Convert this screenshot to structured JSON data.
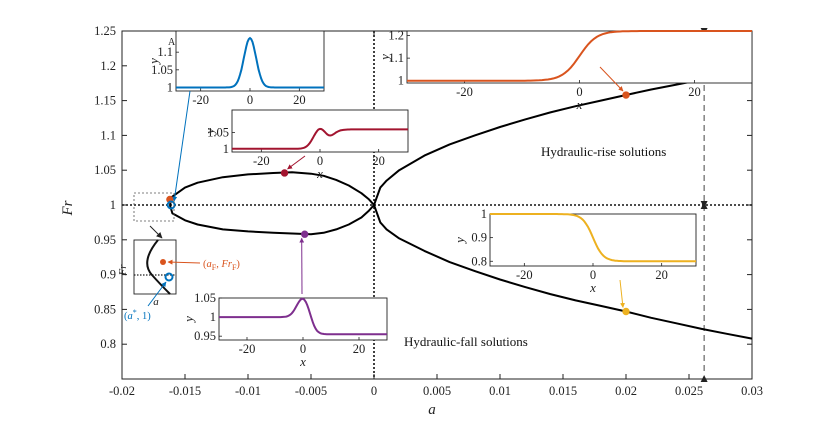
{
  "chart_data": {
    "type": "line",
    "title": "",
    "xlabel": "a",
    "ylabel": "Fr",
    "xlim": [
      -0.02,
      0.03
    ],
    "ylim": [
      0.75,
      1.25
    ],
    "xticks": [
      "-0.02",
      "-0.015",
      "-0.01",
      "-0.005",
      "0",
      "0.005",
      "0.01",
      "0.015",
      "0.02",
      "0.025",
      "0.03"
    ],
    "yticks": [
      "0.8",
      "0.85",
      "0.9",
      "0.95",
      "1",
      "1.05",
      "1.1",
      "1.15",
      "1.2",
      "1.25"
    ],
    "x_tick_values": [
      -0.02,
      -0.015,
      -0.01,
      -0.005,
      0,
      0.005,
      0.01,
      0.015,
      0.02,
      0.025,
      0.03
    ],
    "y_tick_values": [
      0.8,
      0.85,
      0.9,
      0.95,
      1,
      1.05,
      1.1,
      1.15,
      1.2,
      1.25
    ],
    "series": [
      {
        "name": "hydraulic-rise branch",
        "x": [
          0,
          0.0005,
          0.001,
          0.002,
          0.004,
          0.006,
          0.008,
          0.01,
          0.012,
          0.014,
          0.016,
          0.018,
          0.02,
          0.022,
          0.024,
          0.026,
          0.028,
          0.03
        ],
        "y": [
          1.0,
          1.025,
          1.035,
          1.05,
          1.071,
          1.087,
          1.1,
          1.112,
          1.123,
          1.133,
          1.142,
          1.15,
          1.158,
          1.166,
          1.173,
          1.18,
          1.186,
          1.192
        ]
      },
      {
        "name": "hydraulic-fall branch",
        "x": [
          0,
          0.0005,
          0.001,
          0.002,
          0.004,
          0.006,
          0.008,
          0.01,
          0.012,
          0.014,
          0.016,
          0.018,
          0.02,
          0.022,
          0.024,
          0.026,
          0.028,
          0.03
        ],
        "y": [
          1.0,
          0.975,
          0.965,
          0.952,
          0.934,
          0.918,
          0.905,
          0.893,
          0.882,
          0.872,
          0.863,
          0.855,
          0.847,
          0.838,
          0.83,
          0.822,
          0.815,
          0.808
        ]
      },
      {
        "name": "closed loop (upper)",
        "x": [
          -0.0162,
          -0.016,
          -0.015,
          -0.014,
          -0.012,
          -0.01,
          -0.008,
          -0.0065,
          -0.005,
          -0.004,
          -0.003,
          -0.002,
          -0.001,
          -0.0004,
          0
        ],
        "y": [
          1.0,
          1.012,
          1.025,
          1.032,
          1.04,
          1.044,
          1.046,
          1.047,
          1.045,
          1.042,
          1.036,
          1.028,
          1.017,
          1.008,
          1.0
        ]
      },
      {
        "name": "closed loop (lower)",
        "x": [
          -0.0162,
          -0.016,
          -0.015,
          -0.014,
          -0.012,
          -0.01,
          -0.008,
          -0.0065,
          -0.005,
          -0.004,
          -0.003,
          -0.002,
          -0.001,
          -0.0004,
          0
        ],
        "y": [
          1.0,
          0.988,
          0.978,
          0.972,
          0.965,
          0.962,
          0.96,
          0.959,
          0.958,
          0.96,
          0.965,
          0.972,
          0.982,
          0.992,
          1.0
        ]
      }
    ],
    "markers": [
      {
        "name": "rise point",
        "x": 0.02,
        "y": 1.158,
        "color": "#d9541e"
      },
      {
        "name": "fall point",
        "x": 0.02,
        "y": 0.847,
        "color": "#edb120"
      },
      {
        "name": "loop upper point",
        "x": -0.0071,
        "y": 1.046,
        "color": "#a2142f"
      },
      {
        "name": "loop lower point",
        "x": -0.0055,
        "y": 0.958,
        "color": "#7e2f8e"
      },
      {
        "name": "a_F point",
        "x": -0.0162,
        "y": 1.008,
        "color": "#d9541e"
      },
      {
        "name": "a* point",
        "x": -0.0161,
        "y": 1.0,
        "color": "#0072bd"
      }
    ],
    "reference_lines": {
      "horizontal_y": 1,
      "vertical_x": 0,
      "dashed_x": 0.0262
    },
    "annotations": {
      "rise_label": "Hydraulic-rise solutions",
      "fall_label": "Hydraulic-fall solutions",
      "inset_A_label": "A",
      "zoom_aF_label": "(a_F, Fr_F)",
      "zoom_astar_label": "(a^*, 1)",
      "zoom_xlabel": "a",
      "zoom_ylabel": "Fr"
    },
    "insets": [
      {
        "id": "inset-blue",
        "color": "#0072bd",
        "profile": "bump",
        "xlim": [
          -30,
          30
        ],
        "ylim": [
          0.99,
          1.16
        ],
        "xticks": [
          "-20",
          "0",
          "20"
        ],
        "x_tick_values": [
          -20,
          0,
          20
        ],
        "yticks": [
          "1",
          "1.05",
          "1.1"
        ],
        "y_tick_values": [
          1,
          1.05,
          1.1
        ],
        "xlabel": "x",
        "ylabel": "y"
      },
      {
        "id": "inset-red",
        "color": "#a2142f",
        "profile": "bump-rise",
        "xlim": [
          -30,
          30
        ],
        "ylim": [
          0.99,
          1.12
        ],
        "xticks": [
          "-20",
          "0",
          "20"
        ],
        "x_tick_values": [
          -20,
          0,
          20
        ],
        "yticks": [
          "1",
          "1.05"
        ],
        "y_tick_values": [
          1,
          1.05
        ],
        "xlabel": "x",
        "ylabel": "y"
      },
      {
        "id": "inset-orange",
        "color": "#d9541e",
        "profile": "rise",
        "xlim": [
          -30,
          30
        ],
        "ylim": [
          0.99,
          1.22
        ],
        "xticks": [
          "-20",
          "0",
          "20"
        ],
        "x_tick_values": [
          -20,
          0,
          20
        ],
        "yticks": [
          "1",
          "1.1",
          "1.2"
        ],
        "y_tick_values": [
          1,
          1.1,
          1.2
        ],
        "xlabel": "x",
        "ylabel": "y"
      },
      {
        "id": "inset-yellow",
        "color": "#edb120",
        "profile": "fall",
        "xlim": [
          -30,
          30
        ],
        "ylim": [
          0.78,
          1.0
        ],
        "xticks": [
          "-20",
          "0",
          "20"
        ],
        "x_tick_values": [
          -20,
          0,
          20
        ],
        "yticks": [
          "0.8",
          "0.9",
          "1"
        ],
        "y_tick_values": [
          0.8,
          0.9,
          1
        ],
        "xlabel": "x",
        "ylabel": "y"
      },
      {
        "id": "inset-purple",
        "color": "#7e2f8e",
        "profile": "bump-fall",
        "xlim": [
          -30,
          30
        ],
        "ylim": [
          0.94,
          1.05
        ],
        "xticks": [
          "-20",
          "0",
          "20"
        ],
        "x_tick_values": [
          -20,
          0,
          20
        ],
        "yticks": [
          "0.95",
          "1",
          "1.05"
        ],
        "y_tick_values": [
          0.95,
          1,
          1.05
        ],
        "xlabel": "x",
        "ylabel": "y"
      }
    ]
  }
}
